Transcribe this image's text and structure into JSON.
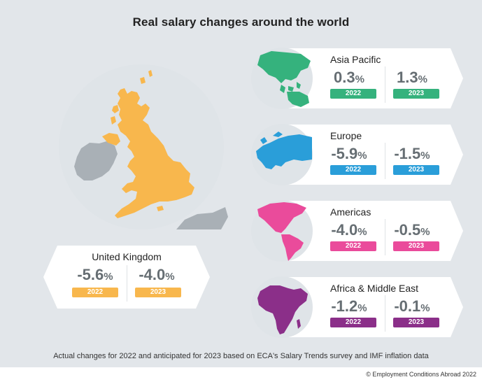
{
  "title": "Real salary changes around the world",
  "footnote": "Actual changes for 2022 and anticipated for 2023 based on ECA's Salary Trends survey and IMF inflation data",
  "credit": "© Employment Conditions Abroad 2022",
  "colors": {
    "uk": "#f8b74d",
    "asia_pacific": "#35b27d",
    "europe": "#2a9ed9",
    "americas": "#ea4b9b",
    "africa_middle_east": "#8b2f89",
    "value_text": "#666e73",
    "background": "#e2e6ea"
  },
  "chart_data": {
    "type": "table",
    "title": "Real salary changes around the world",
    "columns": [
      "2022",
      "2023"
    ],
    "unit": "%",
    "rows": [
      {
        "region": "United Kingdom",
        "values": [
          -5.6,
          -4.0
        ],
        "labels": [
          "-5.6",
          "-4.0"
        ],
        "color": "#f8b74d",
        "map_icon": "uk-map-icon"
      },
      {
        "region": "Asia Pacific",
        "values": [
          0.3,
          1.3
        ],
        "labels": [
          "0.3",
          "1.3"
        ],
        "color": "#35b27d",
        "map_icon": "asia-pacific-map-icon"
      },
      {
        "region": "Europe",
        "values": [
          -5.9,
          -1.5
        ],
        "labels": [
          "-5.9",
          "-1.5"
        ],
        "color": "#2a9ed9",
        "map_icon": "europe-map-icon"
      },
      {
        "region": "Americas",
        "values": [
          -4.0,
          -0.5
        ],
        "labels": [
          "-4.0",
          "-0.5"
        ],
        "color": "#ea4b9b",
        "map_icon": "americas-map-icon"
      },
      {
        "region": "Africa & Middle East",
        "values": [
          -1.2,
          -0.1
        ],
        "labels": [
          "-1.2",
          "-0.1"
        ],
        "color": "#8b2f89",
        "map_icon": "africa-middle-east-map-icon"
      }
    ]
  }
}
